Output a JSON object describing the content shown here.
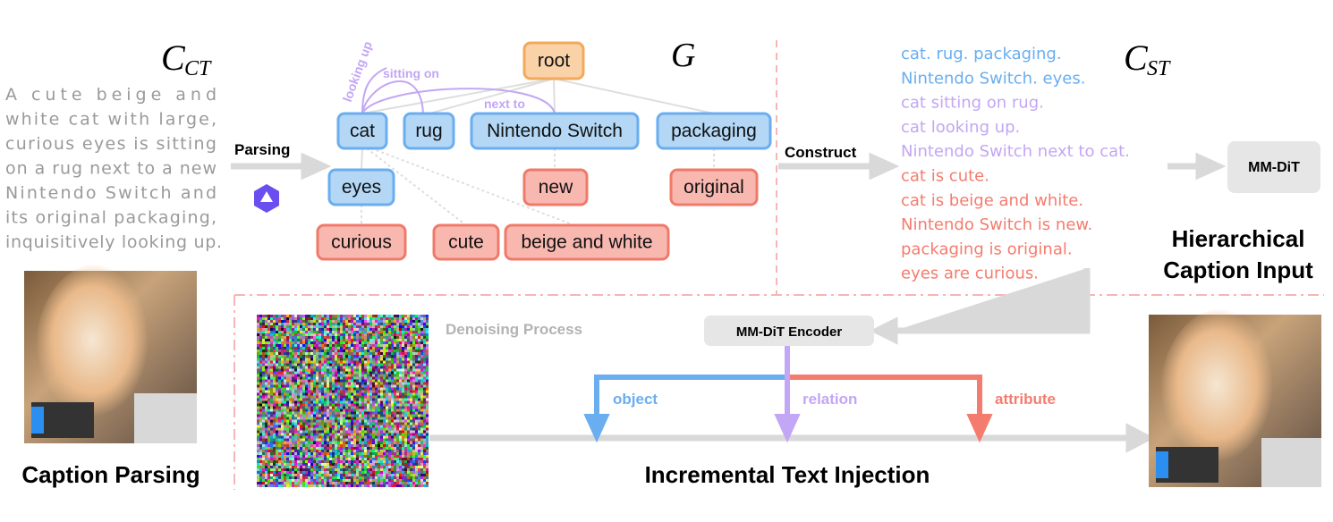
{
  "left": {
    "symbol": "C",
    "symbol_sub": "CT",
    "caption_lines": [
      "A cute beige and",
      "white cat with large,",
      "curious eyes is sitting",
      "on a rug next to a new",
      "Nintendo Switch and",
      "its original packaging,",
      "inquisitively looking up."
    ],
    "parsing_label": "Parsing",
    "section_title": "Caption Parsing"
  },
  "graph": {
    "symbol": "G",
    "root": "root",
    "objects": [
      "cat",
      "rug",
      "Nintendo Switch",
      "packaging",
      "eyes"
    ],
    "attributes": [
      "new",
      "original",
      "curious",
      "cute",
      "beige and white"
    ],
    "relations": [
      "looking up",
      "sitting on",
      "next to"
    ]
  },
  "right": {
    "construct_label": "Construct",
    "symbol": "C",
    "symbol_sub": "ST",
    "lines": [
      {
        "text": "cat. rug. packaging.",
        "type": "object"
      },
      {
        "text": "Nintendo Switch. eyes.",
        "type": "object"
      },
      {
        "text": "cat sitting on rug.",
        "type": "relation"
      },
      {
        "text": "cat looking up.",
        "type": "relation"
      },
      {
        "text": "Nintendo Switch next to cat.",
        "type": "relation"
      },
      {
        "text": "cat is cute.",
        "type": "attribute"
      },
      {
        "text": "cat is beige and white.",
        "type": "attribute"
      },
      {
        "text": "Nintendo Switch is new.",
        "type": "attribute"
      },
      {
        "text": "packaging is original.",
        "type": "attribute"
      },
      {
        "text": "eyes are curious.",
        "type": "attribute"
      }
    ],
    "mmdit_label": "MM-DiT",
    "section_title_1": "Hierarchical",
    "section_title_2": "Caption Input"
  },
  "bottom": {
    "denoising_label": "Denoising Process",
    "encoder_label": "MM-DiT Encoder",
    "branch_object": "object",
    "branch_relation": "relation",
    "branch_attribute": "attribute",
    "section_title": "Incremental Text Injection"
  },
  "colors": {
    "object": "#6aaef0",
    "relation": "#c3a6f5",
    "attribute": "#f47c6e",
    "root": "#f2a95c",
    "arrow": "#d9d9d9",
    "divider": "#f7b5b5"
  }
}
